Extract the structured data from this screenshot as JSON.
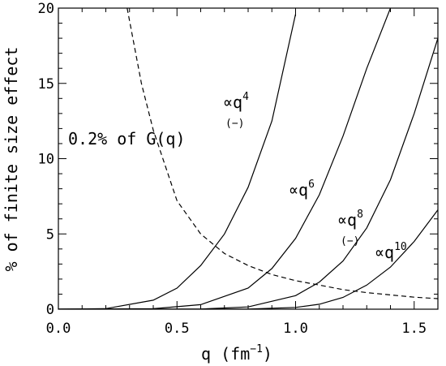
{
  "chart_data": {
    "type": "line",
    "xlabel": "q (fm",
    "xlabel_sup": "−1",
    "xlabel_close": ")",
    "ylabel": "% of finite size effect",
    "xlim": [
      0.0,
      1.6
    ],
    "ylim": [
      0,
      20
    ],
    "x_ticks": [
      "0.0",
      "0.5",
      "1.0",
      "1.5"
    ],
    "x_tick_values": [
      0.0,
      0.5,
      1.0,
      1.5
    ],
    "y_ticks": [
      "0",
      "5",
      "10",
      "15",
      "20"
    ],
    "y_tick_values": [
      0,
      5,
      10,
      15,
      20
    ],
    "grid": false,
    "legend": "none",
    "series": [
      {
        "style": "solid",
        "points": [
          [
            0.0,
            0.0
          ],
          [
            0.2,
            0.04
          ],
          [
            0.4,
            0.6
          ],
          [
            0.5,
            1.4
          ],
          [
            0.6,
            2.9
          ],
          [
            0.7,
            5.0
          ],
          [
            0.8,
            8.1
          ],
          [
            0.9,
            12.5
          ],
          [
            1.0,
            19.6
          ]
        ]
      },
      {
        "style": "solid",
        "points": [
          [
            0.0,
            0.0
          ],
          [
            0.4,
            0.03
          ],
          [
            0.6,
            0.3
          ],
          [
            0.8,
            1.4
          ],
          [
            0.9,
            2.7
          ],
          [
            1.0,
            4.7
          ],
          [
            1.1,
            7.6
          ],
          [
            1.2,
            11.5
          ],
          [
            1.3,
            16.0
          ],
          [
            1.4,
            20.0
          ]
        ]
      },
      {
        "style": "solid",
        "points": [
          [
            0.0,
            0.0
          ],
          [
            0.6,
            0.01
          ],
          [
            0.8,
            0.15
          ],
          [
            1.0,
            0.9
          ],
          [
            1.1,
            1.8
          ],
          [
            1.2,
            3.2
          ],
          [
            1.3,
            5.4
          ],
          [
            1.4,
            8.6
          ],
          [
            1.5,
            13.0
          ],
          [
            1.6,
            18.0
          ]
        ]
      },
      {
        "style": "solid",
        "points": [
          [
            0.0,
            0.0
          ],
          [
            0.8,
            0.01
          ],
          [
            1.0,
            0.12
          ],
          [
            1.1,
            0.33
          ],
          [
            1.2,
            0.78
          ],
          [
            1.3,
            1.6
          ],
          [
            1.4,
            2.8
          ],
          [
            1.5,
            4.5
          ],
          [
            1.6,
            6.6
          ]
        ]
      },
      {
        "style": "dashed",
        "points": [
          [
            0.29,
            20.0
          ],
          [
            0.35,
            15.0
          ],
          [
            0.4,
            11.9
          ],
          [
            0.5,
            7.2
          ],
          [
            0.6,
            5.0
          ],
          [
            0.7,
            3.7
          ],
          [
            0.8,
            2.9
          ],
          [
            0.9,
            2.3
          ],
          [
            1.0,
            1.9
          ],
          [
            1.1,
            1.6
          ],
          [
            1.2,
            1.3
          ],
          [
            1.3,
            1.1
          ],
          [
            1.4,
            0.95
          ],
          [
            1.5,
            0.8
          ],
          [
            1.6,
            0.7
          ]
        ]
      }
    ],
    "annotations": [
      {
        "base": "∝q",
        "sup": "4",
        "sub": "(−)"
      },
      {
        "base": "∝q",
        "sup": "6",
        "sub": ""
      },
      {
        "base": "∝q",
        "sup": "8",
        "sub": "(−)"
      },
      {
        "base": "∝q",
        "sup": "10",
        "sub": ""
      },
      {
        "text": "0.2% of G(q)"
      }
    ]
  }
}
